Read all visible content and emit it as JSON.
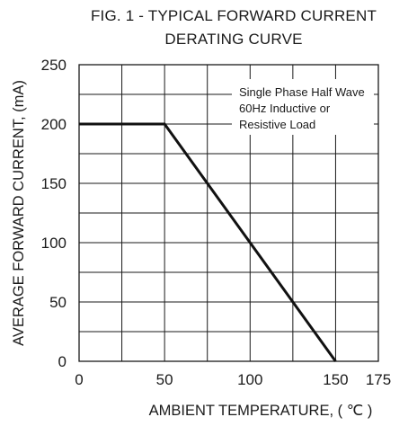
{
  "chart_data": {
    "type": "line",
    "title_line1": "FIG. 1 - TYPICAL FORWARD CURRENT",
    "title_line2": "DERATING CURVE",
    "xlabel": "AMBIENT TEMPERATURE, ( ℃ )",
    "ylabel": "AVERAGE FORWARD CURRENT, (mA)",
    "xlim": [
      0,
      175
    ],
    "ylim": [
      0,
      250
    ],
    "x_ticks": [
      0,
      50,
      100,
      150,
      175
    ],
    "y_ticks": [
      0,
      50,
      100,
      150,
      200,
      250
    ],
    "x_grid_step": 25,
    "y_grid_step": 25,
    "grid": true,
    "series": [
      {
        "x": [
          0,
          50,
          150
        ],
        "y": [
          200,
          200,
          0
        ]
      }
    ],
    "annotation": [
      "Single Phase Half Wave",
      "60Hz Inductive or",
      "Resistive Load"
    ]
  }
}
